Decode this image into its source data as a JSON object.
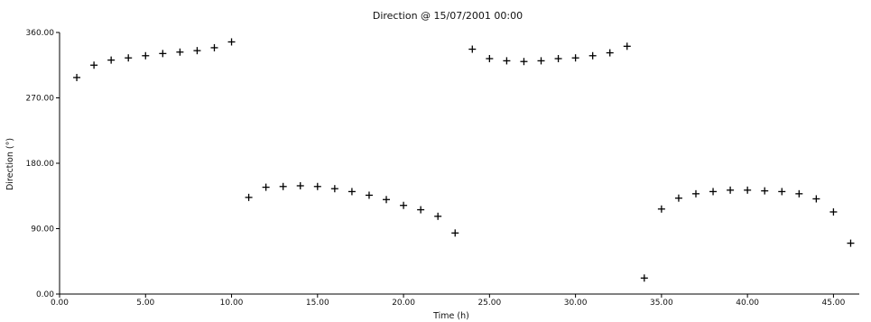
{
  "chart_data": {
    "type": "scatter",
    "title": "Direction @ 15/07/2001 00:00",
    "xlabel": "Time (h)",
    "ylabel": "Direction (°)",
    "xlim": [
      0,
      46.5
    ],
    "ylim": [
      0,
      360
    ],
    "x_ticks": [
      0,
      5,
      10,
      15,
      20,
      25,
      30,
      35,
      40,
      45
    ],
    "x_tick_labels": [
      "0.00",
      "5.00",
      "10.00",
      "15.00",
      "20.00",
      "25.00",
      "30.00",
      "35.00",
      "40.00",
      "45.00"
    ],
    "y_ticks": [
      0,
      90,
      180,
      270,
      360
    ],
    "y_tick_labels": [
      "0.00",
      "90.00",
      "180.00",
      "270.00",
      "360.00"
    ],
    "marker": "+",
    "marker_color": "#000000",
    "grid": false,
    "legend": "none",
    "series": [
      {
        "x": [
          1,
          2,
          3,
          4,
          5,
          6,
          7,
          8,
          9,
          10,
          11,
          12,
          13,
          14,
          15,
          16,
          17,
          18,
          19,
          20,
          21,
          22,
          23,
          24,
          25,
          26,
          27,
          28,
          29,
          30,
          31,
          32,
          33,
          34,
          35,
          36,
          37,
          38,
          39,
          40,
          41,
          42,
          43,
          44,
          45,
          46
        ],
        "y": [
          298,
          315,
          322,
          325,
          328,
          331,
          333,
          335,
          339,
          347,
          133,
          147,
          148,
          149,
          148,
          145,
          141,
          136,
          130,
          122,
          116,
          107,
          84,
          337,
          324,
          321,
          320,
          321,
          324,
          325,
          328,
          332,
          341,
          22,
          117,
          132,
          138,
          141,
          143,
          143,
          142,
          141,
          138,
          131,
          113,
          70
        ]
      }
    ]
  }
}
